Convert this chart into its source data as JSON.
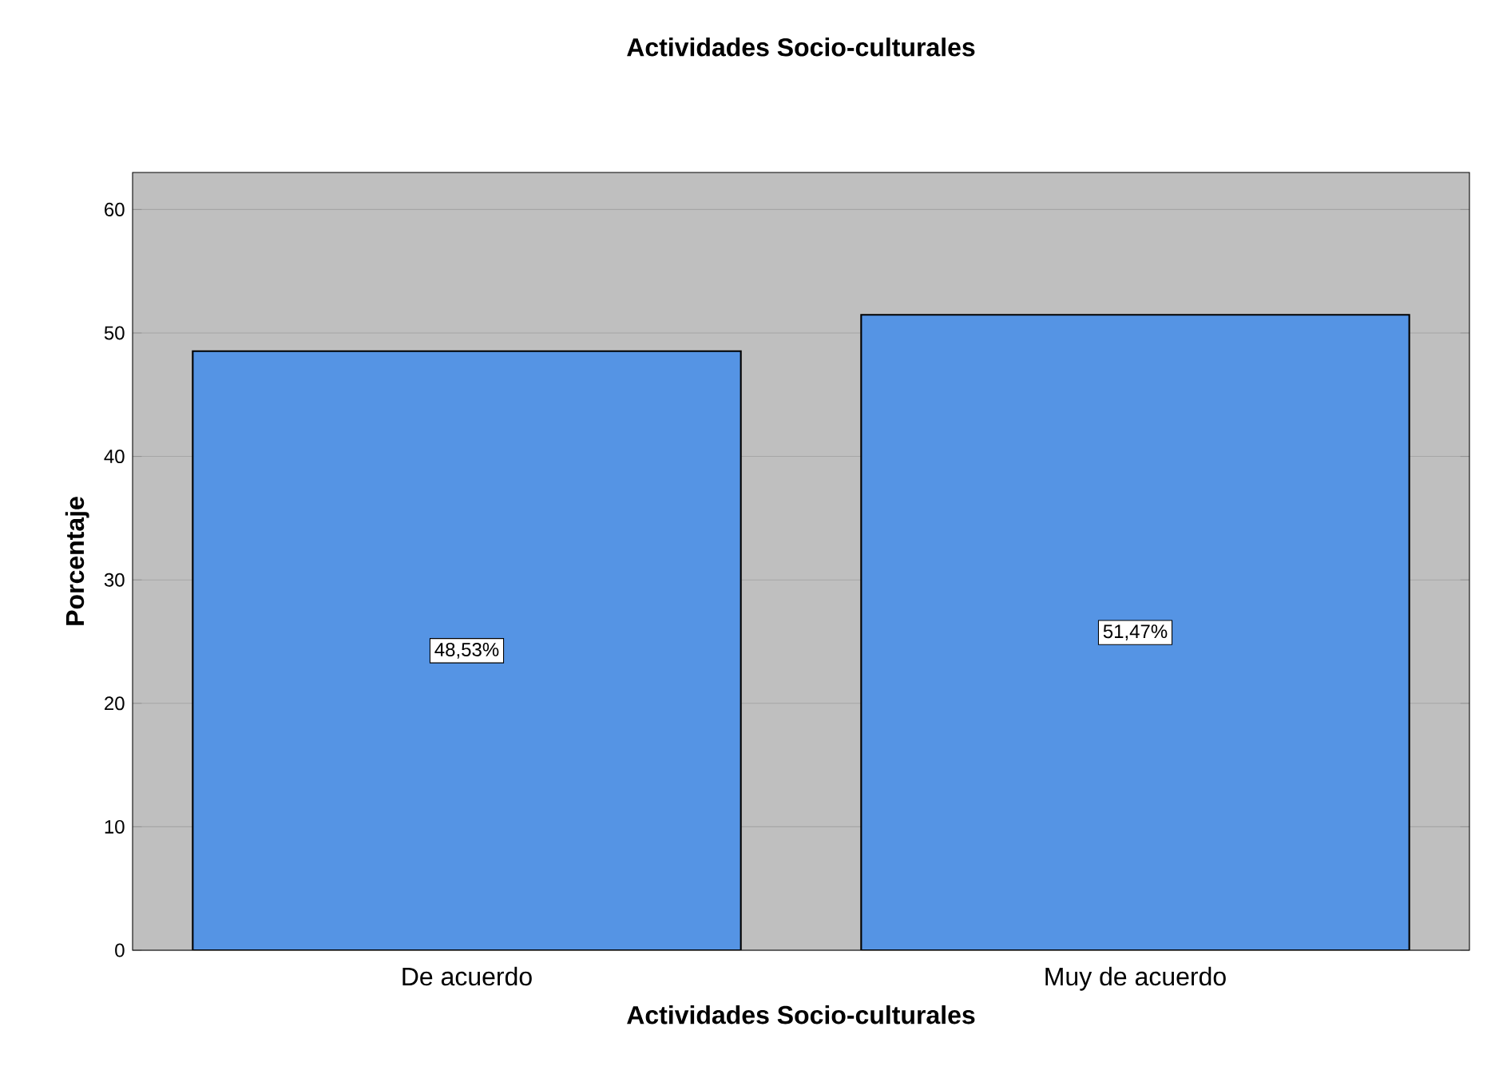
{
  "chart_data": {
    "type": "bar",
    "title": "Actividades Socio-culturales",
    "xlabel": "Actividades Socio-culturales",
    "ylabel": "Porcentaje",
    "categories": [
      "De acuerdo",
      "Muy de acuerdo"
    ],
    "values": [
      48.53,
      51.47
    ],
    "value_labels": [
      "48,53%",
      "51,47%"
    ],
    "color": "#5594e4",
    "ylim": [
      0,
      63
    ],
    "yticks": [
      0,
      10,
      20,
      30,
      40,
      50,
      60
    ],
    "grid": "y"
  }
}
